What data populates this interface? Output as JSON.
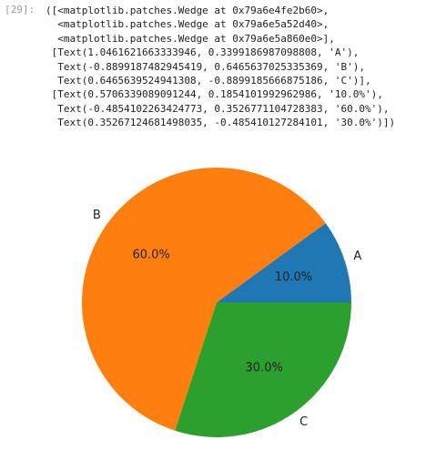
{
  "prompt": "[29]:",
  "output": [
    "([<matplotlib.patches.Wedge at 0x79a6e4fe2b60>,",
    "  <matplotlib.patches.Wedge at 0x79a6e5a52d40>,",
    "  <matplotlib.patches.Wedge at 0x79a6e5a860e0>],",
    " [Text(1.0461621663333946, 0.3399186987098808, 'A'),",
    "  Text(-0.8899187482945419, 0.6465637025335369, 'B'),",
    "  Text(0.6465639524941308, -0.8899185666875186, 'C')],",
    " [Text(0.5706339089091244, 0.1854101992962986, '10.0%'),",
    "  Text(-0.4854102263424773, 0.3526771104728383, '60.0%'),",
    "  Text(0.35267124681498035, -0.485410127284101, '30.0%')])"
  ],
  "chart_data": {
    "type": "pie",
    "categories": [
      "A",
      "B",
      "C"
    ],
    "values": [
      10,
      60,
      30
    ],
    "value_labels": [
      "10.0%",
      "60.0%",
      "30.0%"
    ],
    "colors": [
      "#1f77b4",
      "#ff7f0e",
      "#2ca02c"
    ]
  }
}
